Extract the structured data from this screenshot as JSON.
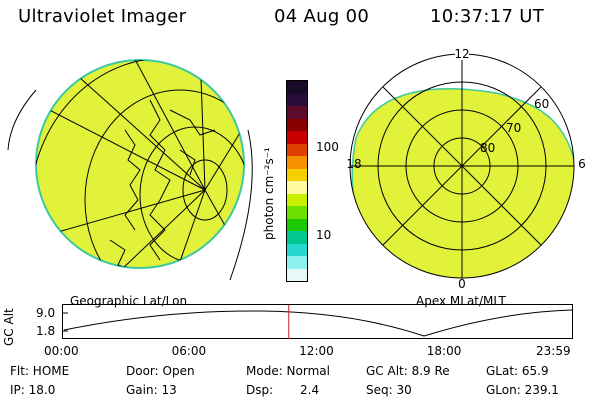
{
  "header": {
    "instrument": "Ultraviolet Imager",
    "date": "04 Aug 00",
    "time": "10:37:17 UT"
  },
  "left_panel": {
    "label": "Geographic Lat/Lon"
  },
  "right_panel": {
    "label": "Apex MLat/MLT",
    "mlt_labels": {
      "top": "12",
      "left": "18",
      "right": "6",
      "bottom": "0"
    },
    "lat_labels": [
      "60",
      "70",
      "80"
    ]
  },
  "colorbar": {
    "unit": "photon cm⁻²s⁻¹",
    "ticks": [
      "100",
      "10"
    ],
    "colors_top_to_bottom": [
      "#1a0a2a",
      "#2a0c3a",
      "#5a0c2a",
      "#8a0000",
      "#c80000",
      "#e04000",
      "#f59000",
      "#f5d000",
      "#fff9a0",
      "#c8f000",
      "#6ee000",
      "#1ec800",
      "#00c890",
      "#28d8d0",
      "#8ff0f0",
      "#e6f8f8"
    ]
  },
  "timeline": {
    "y_label": "GC Alt",
    "y_ticks": [
      "9.0",
      "1.8"
    ],
    "x_ticks": [
      "00:00",
      "06:00",
      "12:00",
      "18:00",
      "23:59"
    ],
    "current_time": "10:37",
    "marker_color": "#d02020"
  },
  "info": {
    "flt": "Flt: HOME",
    "ip": "IP: 18.0",
    "door": "Door: Open",
    "gain": "Gain: 13",
    "mode": "Mode: Normal",
    "dsp_label": "Dsp:",
    "dsp_value": "2.4",
    "gc_alt": "GC Alt: 8.9 Re",
    "seq": "Seq: 30",
    "glat": "GLat:  65.9",
    "glon": "GLon: 239.1"
  },
  "colors": {
    "auroral_fill": "#e2f23a",
    "limb": "#3cc8a0"
  }
}
